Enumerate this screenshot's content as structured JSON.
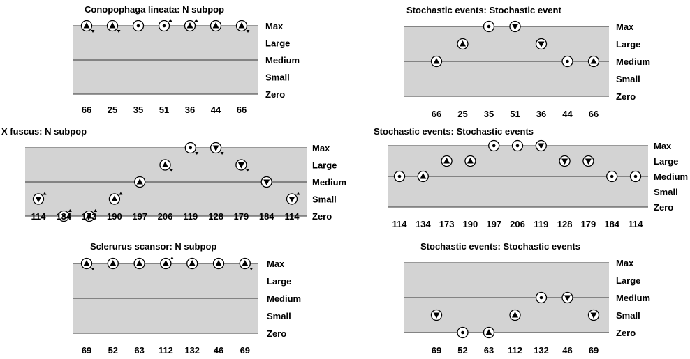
{
  "chart_data": [
    {
      "type": "scatter",
      "title": "Conopophaga lineata: N subpop",
      "y_levels": [
        "Max",
        "Large",
        "Medium",
        "Small",
        "Zero"
      ],
      "categories": [
        "66",
        "25",
        "35",
        "51",
        "36",
        "44",
        "66"
      ],
      "points": [
        {
          "level": "Max",
          "symbol": "up",
          "trend": "down"
        },
        {
          "level": "Max",
          "symbol": "up",
          "trend": "down"
        },
        {
          "level": "Max",
          "symbol": "dot",
          "trend": ""
        },
        {
          "level": "Max",
          "symbol": "dot",
          "trend": "up"
        },
        {
          "level": "Max",
          "symbol": "up",
          "trend": "up"
        },
        {
          "level": "Max",
          "symbol": "up",
          "trend": ""
        },
        {
          "level": "Max",
          "symbol": "up",
          "trend": "down"
        }
      ]
    },
    {
      "type": "scatter",
      "title": "X fuscus: N subpop",
      "y_levels": [
        "Max",
        "Large",
        "Medium",
        "Small",
        "Zero"
      ],
      "categories": [
        "114",
        "134",
        "173",
        "190",
        "197",
        "206",
        "119",
        "128",
        "179",
        "184",
        "114"
      ],
      "points": [
        {
          "level": "Small",
          "symbol": "down",
          "trend": "up"
        },
        {
          "level": "Zero",
          "symbol": "dot",
          "trend": "up"
        },
        {
          "level": "Zero",
          "symbol": "up",
          "trend": "up"
        },
        {
          "level": "Small",
          "symbol": "up",
          "trend": "up"
        },
        {
          "level": "Medium",
          "symbol": "up",
          "trend": ""
        },
        {
          "level": "Large",
          "symbol": "up",
          "trend": "down"
        },
        {
          "level": "Max",
          "symbol": "dot",
          "trend": "down"
        },
        {
          "level": "Max",
          "symbol": "down",
          "trend": "down"
        },
        {
          "level": "Large",
          "symbol": "down",
          "trend": "down"
        },
        {
          "level": "Medium",
          "symbol": "down",
          "trend": ""
        },
        {
          "level": "Small",
          "symbol": "down",
          "trend": "up"
        }
      ]
    },
    {
      "type": "scatter",
      "title": "Sclerurus scansor: N subpop",
      "y_levels": [
        "Max",
        "Large",
        "Medium",
        "Small",
        "Zero"
      ],
      "categories": [
        "69",
        "52",
        "63",
        "112",
        "132",
        "46",
        "69"
      ],
      "points": [
        {
          "level": "Max",
          "symbol": "up",
          "trend": "down"
        },
        {
          "level": "Max",
          "symbol": "up",
          "trend": ""
        },
        {
          "level": "Max",
          "symbol": "up",
          "trend": ""
        },
        {
          "level": "Max",
          "symbol": "up",
          "trend": "up"
        },
        {
          "level": "Max",
          "symbol": "up",
          "trend": ""
        },
        {
          "level": "Max",
          "symbol": "up",
          "trend": ""
        },
        {
          "level": "Max",
          "symbol": "up",
          "trend": "down"
        }
      ]
    },
    {
      "type": "scatter",
      "title": "Stochastic events: Stochastic event",
      "y_levels": [
        "Max",
        "Large",
        "Medium",
        "Small",
        "Zero"
      ],
      "categories": [
        "66",
        "25",
        "35",
        "51",
        "36",
        "44",
        "66"
      ],
      "points": [
        {
          "level": "Medium",
          "symbol": "up",
          "trend": ""
        },
        {
          "level": "Large",
          "symbol": "up",
          "trend": ""
        },
        {
          "level": "Max",
          "symbol": "dot",
          "trend": ""
        },
        {
          "level": "Max",
          "symbol": "down",
          "trend": ""
        },
        {
          "level": "Large",
          "symbol": "down",
          "trend": ""
        },
        {
          "level": "Medium",
          "symbol": "dot",
          "trend": ""
        },
        {
          "level": "Medium",
          "symbol": "up",
          "trend": ""
        }
      ]
    },
    {
      "type": "scatter",
      "title": "Stochastic events: Stochastic events",
      "y_levels": [
        "Max",
        "Large",
        "Medium",
        "Small",
        "Zero"
      ],
      "categories": [
        "114",
        "134",
        "173",
        "190",
        "197",
        "206",
        "119",
        "128",
        "179",
        "184",
        "114"
      ],
      "points": [
        {
          "level": "Medium",
          "symbol": "dot",
          "trend": ""
        },
        {
          "level": "Medium",
          "symbol": "up",
          "trend": ""
        },
        {
          "level": "Large",
          "symbol": "up",
          "trend": ""
        },
        {
          "level": "Large",
          "symbol": "up",
          "trend": ""
        },
        {
          "level": "Max",
          "symbol": "dot",
          "trend": ""
        },
        {
          "level": "Max",
          "symbol": "dot",
          "trend": ""
        },
        {
          "level": "Max",
          "symbol": "down",
          "trend": ""
        },
        {
          "level": "Large",
          "symbol": "down",
          "trend": ""
        },
        {
          "level": "Large",
          "symbol": "down",
          "trend": ""
        },
        {
          "level": "Medium",
          "symbol": "dot",
          "trend": ""
        },
        {
          "level": "Medium",
          "symbol": "dot",
          "trend": ""
        }
      ]
    },
    {
      "type": "scatter",
      "title": "Stochastic events: Stochastic events",
      "y_levels": [
        "Max",
        "Large",
        "Medium",
        "Small",
        "Zero"
      ],
      "categories": [
        "69",
        "52",
        "63",
        "112",
        "132",
        "46",
        "69"
      ],
      "points": [
        {
          "level": "Small",
          "symbol": "down",
          "trend": ""
        },
        {
          "level": "Zero",
          "symbol": "dot",
          "trend": ""
        },
        {
          "level": "Zero",
          "symbol": "up",
          "trend": ""
        },
        {
          "level": "Small",
          "symbol": "up",
          "trend": ""
        },
        {
          "level": "Medium",
          "symbol": "dot",
          "trend": ""
        },
        {
          "level": "Medium",
          "symbol": "down",
          "trend": ""
        },
        {
          "level": "Small",
          "symbol": "down",
          "trend": ""
        }
      ]
    }
  ],
  "colors": {
    "panel_fill": "#d3d3d3",
    "line": "#333333",
    "marker_fill": "#ffffff",
    "marker_stroke": "#000000",
    "text": "#000000"
  }
}
